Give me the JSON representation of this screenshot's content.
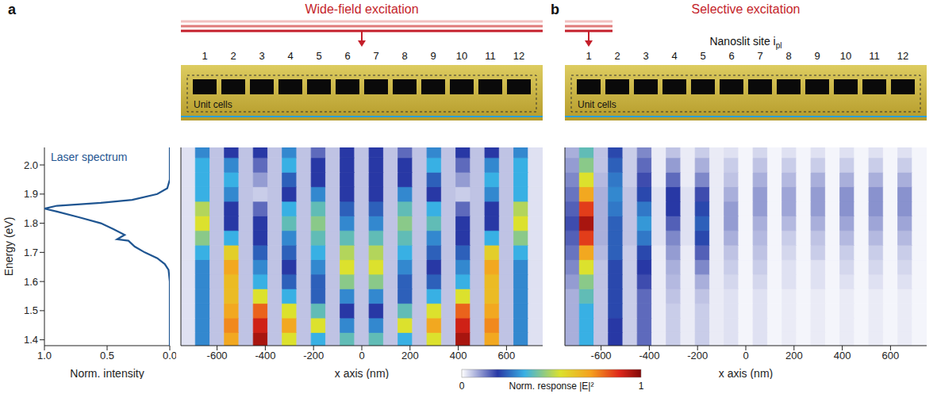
{
  "figure": {
    "panel_labels": [
      "a",
      "b"
    ],
    "titles": [
      "Wide-field excitation",
      "Selective excitation"
    ],
    "site_axis_label": "Nanoslit site i",
    "site_axis_subscript": "pl",
    "sites": [
      1,
      2,
      3,
      4,
      5,
      6,
      7,
      8,
      9,
      10,
      11,
      12
    ],
    "image_label": "Unit cells"
  },
  "colorbar": {
    "label": "Norm. response |E|²",
    "range": [
      0,
      1
    ],
    "ticks": [
      0,
      1
    ]
  },
  "chart_data": [
    {
      "type": "line",
      "x_label": "Norm. intensity",
      "y_label": "Energy (eV)",
      "xlim": [
        1,
        0
      ],
      "xticks": [
        {
          "value": 1,
          "label": "1.0"
        },
        0.5,
        {
          "value": 0,
          "label": "0.0"
        }
      ],
      "ylim": [
        1.38,
        2.06
      ],
      "yticks": [
        1.4,
        1.5,
        1.6,
        1.7,
        1.8,
        1.9,
        {
          "value": 2,
          "label": "2.0"
        }
      ],
      "series": [
        {
          "name": "Laser spectrum",
          "color": "#1f5591",
          "y": [
            1.38,
            1.6,
            1.64,
            1.66,
            1.68,
            1.7,
            1.72,
            1.74,
            1.745,
            1.76,
            1.78,
            1.8,
            1.82,
            1.84,
            1.85,
            1.86,
            1.87,
            1.88,
            1.9,
            1.92,
            1.95,
            2.06
          ],
          "x": [
            0,
            0,
            0.01,
            0.04,
            0.1,
            0.2,
            0.28,
            0.33,
            0.42,
            0.36,
            0.45,
            0.55,
            0.72,
            0.9,
            1.0,
            0.9,
            0.55,
            0.3,
            0.1,
            0.02,
            0,
            0
          ]
        }
      ]
    },
    {
      "type": "heatmap",
      "x_label": "x axis (nm)",
      "xlim": [
        -750,
        750
      ],
      "xticks": [
        -600,
        -400,
        -200,
        0,
        200,
        400,
        600
      ],
      "ylim": [
        1.38,
        2.06
      ],
      "tick_labels": "x",
      "x": [
        -720,
        -660,
        -600,
        -540,
        -480,
        -420,
        -360,
        -300,
        -240,
        -180,
        -120,
        -60,
        0,
        60,
        120,
        180,
        240,
        300,
        360,
        420,
        480,
        540,
        600,
        660,
        720
      ],
      "y": [
        1.4,
        1.45,
        1.5,
        1.55,
        1.6,
        1.65,
        1.7,
        1.75,
        1.8,
        1.85,
        1.9,
        1.95,
        2.0,
        2.05
      ],
      "cells": [
        [
          0.03,
          0.3,
          0.06,
          0.7,
          0.06,
          0.95,
          0.06,
          0.55,
          0.06,
          0.35,
          0.06,
          0.4,
          0.06,
          0.4,
          0.06,
          0.35,
          0.06,
          0.55,
          0.06,
          0.95,
          0.06,
          0.7,
          0.06,
          0.3,
          0.03
        ],
        [
          0.03,
          0.3,
          0.06,
          0.75,
          0.06,
          0.9,
          0.06,
          0.7,
          0.06,
          0.55,
          0.06,
          0.3,
          0.06,
          0.3,
          0.06,
          0.55,
          0.06,
          0.7,
          0.06,
          0.9,
          0.06,
          0.75,
          0.06,
          0.3,
          0.03
        ],
        [
          0.03,
          0.3,
          0.06,
          0.7,
          0.06,
          0.8,
          0.06,
          0.55,
          0.06,
          0.4,
          0.06,
          0.2,
          0.06,
          0.2,
          0.06,
          0.4,
          0.06,
          0.55,
          0.06,
          0.8,
          0.06,
          0.7,
          0.06,
          0.3,
          0.03
        ],
        [
          0.03,
          0.3,
          0.06,
          0.65,
          0.06,
          0.55,
          0.06,
          0.35,
          0.06,
          0.25,
          0.06,
          0.3,
          0.06,
          0.3,
          0.06,
          0.25,
          0.06,
          0.35,
          0.06,
          0.55,
          0.06,
          0.65,
          0.06,
          0.3,
          0.03
        ],
        [
          0.03,
          0.3,
          0.06,
          0.65,
          0.06,
          0.35,
          0.06,
          0.25,
          0.06,
          0.25,
          0.06,
          0.45,
          0.06,
          0.45,
          0.06,
          0.25,
          0.06,
          0.25,
          0.06,
          0.35,
          0.06,
          0.65,
          0.06,
          0.3,
          0.03
        ],
        [
          0.03,
          0.3,
          0.06,
          0.7,
          0.06,
          0.3,
          0.06,
          0.2,
          0.06,
          0.3,
          0.06,
          0.55,
          0.06,
          0.55,
          0.06,
          0.3,
          0.06,
          0.2,
          0.06,
          0.3,
          0.06,
          0.7,
          0.06,
          0.3,
          0.03
        ],
        [
          0.03,
          0.35,
          0.06,
          0.6,
          0.06,
          0.25,
          0.06,
          0.25,
          0.06,
          0.35,
          0.06,
          0.5,
          0.06,
          0.5,
          0.06,
          0.35,
          0.06,
          0.25,
          0.06,
          0.25,
          0.06,
          0.6,
          0.06,
          0.35,
          0.03
        ],
        [
          0.03,
          0.45,
          0.06,
          0.35,
          0.06,
          0.2,
          0.06,
          0.3,
          0.06,
          0.4,
          0.06,
          0.4,
          0.06,
          0.4,
          0.06,
          0.4,
          0.06,
          0.3,
          0.06,
          0.2,
          0.06,
          0.35,
          0.06,
          0.45,
          0.03
        ],
        [
          0.03,
          0.55,
          0.06,
          0.2,
          0.06,
          0.2,
          0.06,
          0.4,
          0.06,
          0.45,
          0.06,
          0.3,
          0.06,
          0.3,
          0.06,
          0.45,
          0.06,
          0.4,
          0.06,
          0.2,
          0.06,
          0.2,
          0.06,
          0.55,
          0.03
        ],
        [
          0.03,
          0.5,
          0.06,
          0.2,
          0.06,
          0.15,
          0.06,
          0.35,
          0.06,
          0.4,
          0.06,
          0.25,
          0.06,
          0.25,
          0.06,
          0.4,
          0.06,
          0.35,
          0.06,
          0.15,
          0.06,
          0.2,
          0.06,
          0.5,
          0.03
        ],
        [
          0.03,
          0.35,
          0.06,
          0.3,
          0.06,
          0.05,
          0.06,
          0.2,
          0.06,
          0.3,
          0.06,
          0.2,
          0.06,
          0.2,
          0.06,
          0.3,
          0.06,
          0.2,
          0.06,
          0.05,
          0.06,
          0.3,
          0.06,
          0.35,
          0.03
        ],
        [
          0.03,
          0.35,
          0.06,
          0.35,
          0.06,
          0.1,
          0.06,
          0.25,
          0.06,
          0.2,
          0.06,
          0.2,
          0.06,
          0.2,
          0.06,
          0.2,
          0.06,
          0.25,
          0.06,
          0.1,
          0.06,
          0.35,
          0.06,
          0.35,
          0.03
        ],
        [
          0.03,
          0.35,
          0.06,
          0.3,
          0.06,
          0.15,
          0.06,
          0.35,
          0.06,
          0.2,
          0.06,
          0.2,
          0.06,
          0.2,
          0.06,
          0.2,
          0.06,
          0.35,
          0.06,
          0.15,
          0.06,
          0.3,
          0.06,
          0.35,
          0.03
        ],
        [
          0.03,
          0.3,
          0.06,
          0.2,
          0.06,
          0.2,
          0.06,
          0.3,
          0.06,
          0.15,
          0.06,
          0.2,
          0.06,
          0.2,
          0.06,
          0.15,
          0.06,
          0.3,
          0.06,
          0.2,
          0.06,
          0.2,
          0.06,
          0.3,
          0.03
        ]
      ]
    },
    {
      "type": "heatmap",
      "x_label": "x axis (nm)",
      "xlim": [
        -750,
        750
      ],
      "xticks": [
        -600,
        -400,
        -200,
        0,
        200,
        400,
        600
      ],
      "ylim": [
        1.38,
        2.06
      ],
      "tick_labels": "x",
      "x": [
        -720,
        -660,
        -600,
        -540,
        -480,
        -420,
        -360,
        -300,
        -240,
        -180,
        -120,
        -60,
        0,
        60,
        120,
        180,
        240,
        300,
        360,
        420,
        480,
        540,
        600,
        660,
        720
      ],
      "y": [
        1.4,
        1.45,
        1.5,
        1.55,
        1.6,
        1.65,
        1.7,
        1.75,
        1.8,
        1.85,
        1.9,
        1.95,
        2.0,
        2.05
      ],
      "cells": [
        [
          0.08,
          0.35,
          0.06,
          0.2,
          0.05,
          0.15,
          0.02,
          0.05,
          0.02,
          0.05,
          0.02,
          0.03,
          0.01,
          0.03,
          0.01,
          0.02,
          0.01,
          0.02,
          0.01,
          0.02,
          0.01,
          0.02,
          0.01,
          0.02,
          0.01
        ],
        [
          0.08,
          0.35,
          0.06,
          0.2,
          0.05,
          0.15,
          0.02,
          0.05,
          0.02,
          0.05,
          0.02,
          0.03,
          0.01,
          0.03,
          0.01,
          0.02,
          0.01,
          0.02,
          0.01,
          0.02,
          0.01,
          0.02,
          0.01,
          0.02,
          0.01
        ],
        [
          0.08,
          0.35,
          0.06,
          0.22,
          0.05,
          0.15,
          0.02,
          0.05,
          0.02,
          0.05,
          0.02,
          0.03,
          0.01,
          0.03,
          0.01,
          0.02,
          0.01,
          0.02,
          0.01,
          0.02,
          0.01,
          0.02,
          0.01,
          0.02,
          0.01
        ],
        [
          0.08,
          0.4,
          0.06,
          0.22,
          0.05,
          0.15,
          0.02,
          0.06,
          0.02,
          0.06,
          0.02,
          0.03,
          0.01,
          0.03,
          0.01,
          0.02,
          0.01,
          0.02,
          0.01,
          0.02,
          0.01,
          0.02,
          0.01,
          0.02,
          0.01
        ],
        [
          0.1,
          0.45,
          0.06,
          0.22,
          0.05,
          0.18,
          0.02,
          0.07,
          0.02,
          0.08,
          0.02,
          0.04,
          0.01,
          0.04,
          0.01,
          0.03,
          0.01,
          0.03,
          0.01,
          0.03,
          0.01,
          0.03,
          0.01,
          0.03,
          0.01
        ],
        [
          0.12,
          0.55,
          0.06,
          0.22,
          0.05,
          0.2,
          0.02,
          0.08,
          0.02,
          0.12,
          0.02,
          0.05,
          0.01,
          0.05,
          0.01,
          0.03,
          0.01,
          0.03,
          0.01,
          0.04,
          0.01,
          0.04,
          0.01,
          0.04,
          0.01
        ],
        [
          0.14,
          0.7,
          0.07,
          0.25,
          0.05,
          0.22,
          0.02,
          0.1,
          0.02,
          0.16,
          0.02,
          0.06,
          0.01,
          0.06,
          0.01,
          0.04,
          0.01,
          0.05,
          0.01,
          0.05,
          0.01,
          0.05,
          0.01,
          0.05,
          0.01
        ],
        [
          0.16,
          0.85,
          0.08,
          0.25,
          0.06,
          0.28,
          0.03,
          0.12,
          0.03,
          0.22,
          0.02,
          0.08,
          0.01,
          0.07,
          0.01,
          0.05,
          0.01,
          0.06,
          0.01,
          0.07,
          0.01,
          0.07,
          0.01,
          0.07,
          0.01
        ],
        [
          0.18,
          0.95,
          0.08,
          0.25,
          0.06,
          0.32,
          0.03,
          0.16,
          0.03,
          0.25,
          0.02,
          0.1,
          0.01,
          0.08,
          0.01,
          0.07,
          0.01,
          0.08,
          0.01,
          0.09,
          0.01,
          0.09,
          0.01,
          0.09,
          0.01
        ],
        [
          0.16,
          0.85,
          0.08,
          0.28,
          0.06,
          0.28,
          0.03,
          0.2,
          0.03,
          0.22,
          0.02,
          0.1,
          0.01,
          0.1,
          0.01,
          0.09,
          0.01,
          0.1,
          0.01,
          0.11,
          0.01,
          0.11,
          0.01,
          0.11,
          0.01
        ],
        [
          0.14,
          0.7,
          0.08,
          0.3,
          0.06,
          0.22,
          0.03,
          0.2,
          0.03,
          0.18,
          0.02,
          0.08,
          0.01,
          0.1,
          0.01,
          0.09,
          0.01,
          0.1,
          0.01,
          0.11,
          0.01,
          0.11,
          0.01,
          0.11,
          0.01
        ],
        [
          0.12,
          0.55,
          0.07,
          0.28,
          0.05,
          0.18,
          0.02,
          0.15,
          0.02,
          0.12,
          0.02,
          0.06,
          0.01,
          0.08,
          0.01,
          0.07,
          0.01,
          0.08,
          0.01,
          0.08,
          0.01,
          0.08,
          0.01,
          0.08,
          0.01
        ],
        [
          0.1,
          0.45,
          0.06,
          0.25,
          0.05,
          0.15,
          0.02,
          0.1,
          0.02,
          0.08,
          0.02,
          0.05,
          0.01,
          0.06,
          0.01,
          0.05,
          0.01,
          0.05,
          0.01,
          0.05,
          0.01,
          0.05,
          0.01,
          0.05,
          0.01
        ],
        [
          0.08,
          0.4,
          0.06,
          0.22,
          0.05,
          0.12,
          0.02,
          0.06,
          0.02,
          0.05,
          0.02,
          0.03,
          0.01,
          0.04,
          0.01,
          0.03,
          0.01,
          0.03,
          0.01,
          0.03,
          0.01,
          0.03,
          0.01,
          0.03,
          0.01
        ]
      ]
    }
  ]
}
